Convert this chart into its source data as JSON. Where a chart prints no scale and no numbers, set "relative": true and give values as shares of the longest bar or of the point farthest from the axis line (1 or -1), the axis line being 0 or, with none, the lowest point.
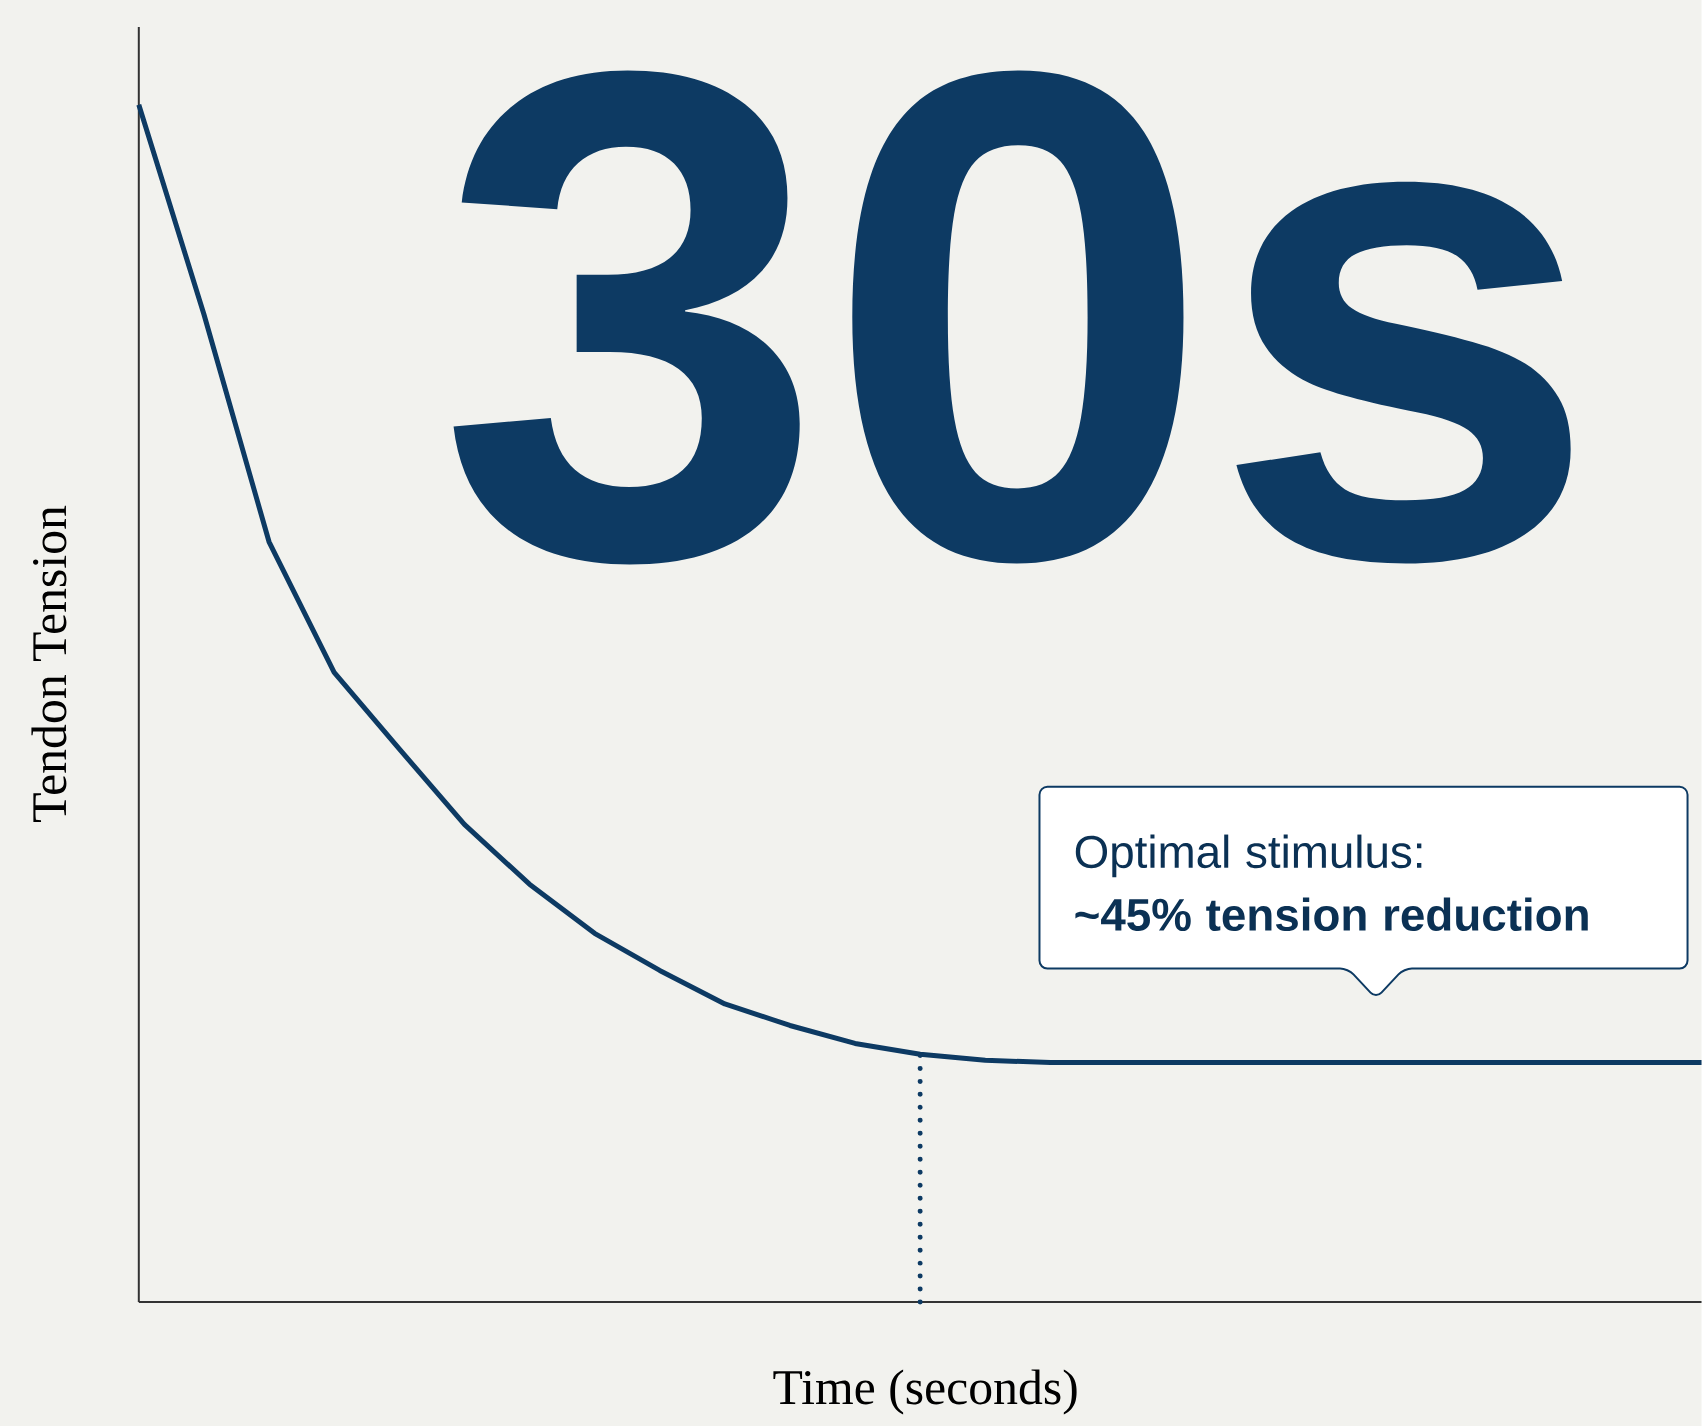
{
  "chart_data": {
    "type": "line",
    "relative": true,
    "xlabel": "Time (seconds)",
    "ylabel": "Tendon Tension",
    "categories": [
      null,
      null,
      null,
      null,
      null,
      null,
      null,
      null,
      null,
      null,
      null,
      null,
      null,
      null,
      null,
      null,
      null,
      null,
      null,
      null,
      null,
      null,
      null,
      null,
      null
    ],
    "series": [
      {
        "color": "#0d3a63",
        "values": [
          1,
          0.825,
          0.635,
          0.526,
          0.462,
          0.399,
          0.349,
          0.308,
          0.277,
          0.249,
          0.231,
          0.216,
          0.207,
          0.202,
          0.2,
          0.2,
          0.2,
          0.2,
          0.2,
          0.2,
          0.2,
          0.2,
          0.2,
          0.2,
          0.2
        ]
      }
    ],
    "annotations": [
      "30s",
      "Optimal stimulus:",
      "**~45% tension reduction**"
    ],
    "line_style": "solid",
    "marker": "none"
  }
}
